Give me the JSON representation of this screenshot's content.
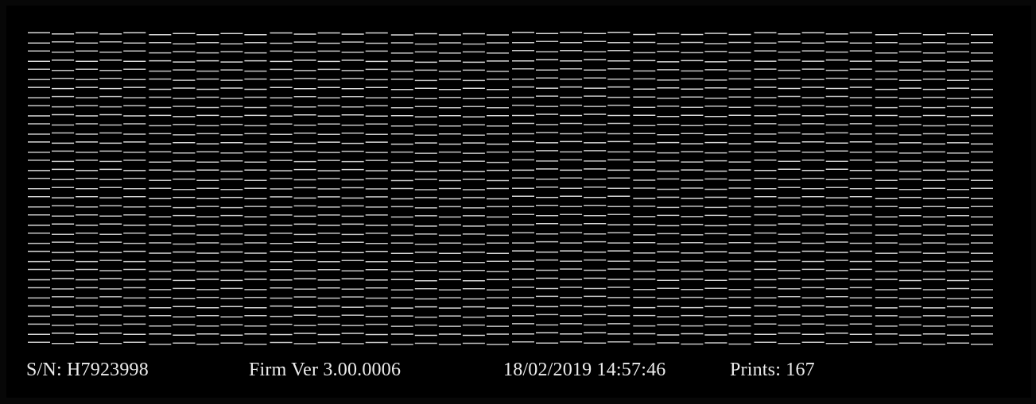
{
  "test_print": {
    "title": "",
    "line_color": "#e6e6e6",
    "background_color": "#000000",
    "row_count": 35,
    "column_count": 8,
    "pattern": "staggered nozzle check dashes"
  },
  "footer": {
    "serial": "S/N: H7923998",
    "firmware": "Firm Ver  3.00.0006",
    "timestamp": "18/02/2019 14:57:46",
    "prints": "Prints:     167"
  }
}
